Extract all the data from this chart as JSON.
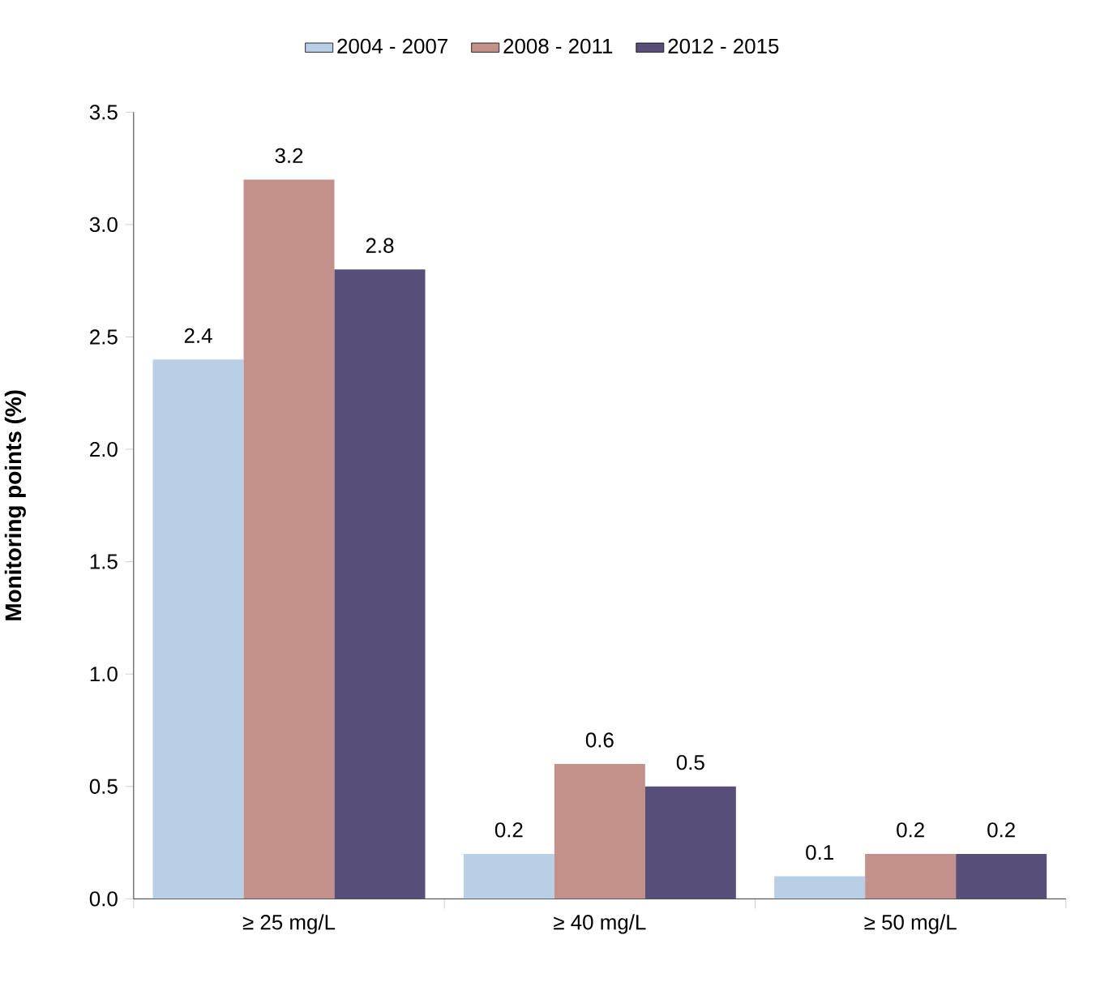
{
  "chart_data": {
    "type": "bar",
    "ylabel": "Monitoring points (%)",
    "categories": [
      "≥ 25 mg/L",
      "≥ 40 mg/L",
      "≥ 50 mg/L"
    ],
    "series": [
      {
        "name": "2004 - 2007",
        "color": "#b8cfe6",
        "values": [
          2.4,
          0.2,
          0.1
        ]
      },
      {
        "name": "2008 - 2011",
        "color": "#c4908a",
        "values": [
          3.2,
          0.6,
          0.2
        ]
      },
      {
        "name": "2012 - 2015",
        "color": "#574f7a",
        "values": [
          2.8,
          0.5,
          0.2
        ]
      }
    ],
    "ylim": [
      0,
      3.5
    ],
    "yticks": [
      {
        "value": 0,
        "label": "0.0"
      },
      0.5,
      {
        "value": 1,
        "label": "1.0"
      },
      1.5,
      {
        "value": 2,
        "label": "2.0"
      },
      2.5,
      {
        "value": 3,
        "label": "3.0"
      },
      3.5
    ],
    "data_labels": true,
    "legend": "top"
  }
}
